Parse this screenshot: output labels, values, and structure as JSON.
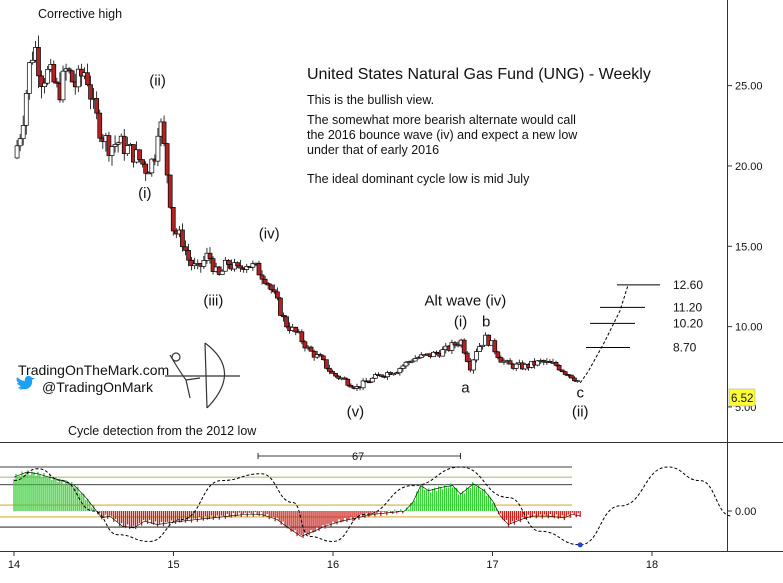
{
  "chart_data": [
    {
      "type": "candlestick",
      "title": "United States Natural Gas Fund (UNG) - Weekly",
      "notes": [
        "This is the bullish view.",
        "The somewhat more bearish alternate would call",
        "the 2016 bounce wave (iv) and expect a new low",
        "under that of early 2016",
        "The ideal dominant cycle low is mid July"
      ],
      "x_ticks": [
        "14",
        "15",
        "16",
        "17",
        "18"
      ],
      "xlim": [
        2014.0,
        2018.55
      ],
      "y_ticks": [
        {
          "value": 5,
          "label": "5.00"
        },
        {
          "value": 10,
          "label": "10.00"
        },
        {
          "value": 15,
          "label": "15.00"
        },
        {
          "value": 20,
          "label": "20.00"
        },
        {
          "value": 25,
          "label": "25.00"
        }
      ],
      "ylim": [
        4.0,
        29.8
      ],
      "last_price": {
        "value": 6.52,
        "label": "6.52"
      },
      "colors": {
        "up": "#ffffff",
        "down": "#b22222",
        "outline": "#000000",
        "price_badge": "#ffff33"
      },
      "price_path": [
        [
          2014.0,
          20.5
        ],
        [
          2014.05,
          22.5
        ],
        [
          2014.1,
          26.5
        ],
        [
          2014.13,
          27.5
        ],
        [
          2014.17,
          25.5
        ],
        [
          2014.22,
          25.8
        ],
        [
          2014.28,
          24.5
        ],
        [
          2014.33,
          26.0
        ],
        [
          2014.38,
          25.0
        ],
        [
          2014.45,
          26.0
        ],
        [
          2014.5,
          23.5
        ],
        [
          2014.55,
          22.0
        ],
        [
          2014.6,
          21.2
        ],
        [
          2014.65,
          21.5
        ],
        [
          2014.72,
          21.0
        ],
        [
          2014.78,
          20.5
        ],
        [
          2014.83,
          19.8
        ],
        [
          2014.88,
          20.5
        ],
        [
          2014.91,
          23.2
        ],
        [
          2014.95,
          20.5
        ],
        [
          2015.0,
          16.0
        ],
        [
          2015.05,
          15.5
        ],
        [
          2015.1,
          14.0
        ],
        [
          2015.15,
          13.5
        ],
        [
          2015.22,
          14.5
        ],
        [
          2015.28,
          13.0
        ],
        [
          2015.34,
          14.0
        ],
        [
          2015.4,
          13.5
        ],
        [
          2015.45,
          14.0
        ],
        [
          2015.52,
          13.6
        ],
        [
          2015.58,
          13.0
        ],
        [
          2015.65,
          11.5
        ],
        [
          2015.7,
          10.2
        ],
        [
          2015.78,
          9.5
        ],
        [
          2015.85,
          8.5
        ],
        [
          2015.92,
          8.0
        ],
        [
          2016.0,
          7.0
        ],
        [
          2016.05,
          6.8
        ],
        [
          2016.1,
          6.5
        ],
        [
          2016.15,
          6.2
        ],
        [
          2016.2,
          6.5
        ],
        [
          2016.3,
          7.0
        ],
        [
          2016.4,
          7.3
        ],
        [
          2016.5,
          8.0
        ],
        [
          2016.6,
          8.2
        ],
        [
          2016.7,
          8.5
        ],
        [
          2016.78,
          9.0
        ],
        [
          2016.8,
          9.2
        ],
        [
          2016.86,
          7.5
        ],
        [
          2016.9,
          8.6
        ],
        [
          2016.96,
          9.3
        ],
        [
          2017.0,
          8.8
        ],
        [
          2017.05,
          8.0
        ],
        [
          2017.1,
          7.6
        ],
        [
          2017.2,
          7.5
        ],
        [
          2017.3,
          7.8
        ],
        [
          2017.4,
          7.6
        ],
        [
          2017.45,
          7.2
        ],
        [
          2017.5,
          6.9
        ],
        [
          2017.55,
          6.5
        ]
      ],
      "projection": [
        [
          2017.55,
          6.5
        ],
        [
          2017.6,
          7.2
        ],
        [
          2017.7,
          9.0
        ],
        [
          2017.8,
          11.0
        ],
        [
          2017.85,
          12.6
        ]
      ],
      "target_levels": [
        {
          "value": 12.6,
          "label": "12.60"
        },
        {
          "value": 11.2,
          "label": "11.20"
        },
        {
          "value": 10.2,
          "label": "10.20"
        },
        {
          "value": 8.7,
          "label": "8.70"
        }
      ],
      "wave_labels": [
        {
          "text": "Corrective high",
          "x": 2014.15,
          "y": 29.2
        },
        {
          "text": "(ii)",
          "x": 2014.9,
          "y": 25.0
        },
        {
          "text": "(i)",
          "x": 2014.82,
          "y": 18.0
        },
        {
          "text": "(iv)",
          "x": 2015.6,
          "y": 15.5
        },
        {
          "text": "(iii)",
          "x": 2015.25,
          "y": 11.3
        },
        {
          "text": "(v)",
          "x": 2016.14,
          "y": 4.4
        },
        {
          "text": "Alt wave (iv)",
          "x": 2016.83,
          "y": 11.3
        },
        {
          "text": "(i)",
          "x": 2016.8,
          "y": 10.0
        },
        {
          "text": "b",
          "x": 2016.96,
          "y": 10.0
        },
        {
          "text": "a",
          "x": 2016.83,
          "y": 5.9
        },
        {
          "text": "c",
          "x": 2017.55,
          "y": 5.6
        },
        {
          "text": "(ii)",
          "x": 2017.55,
          "y": 4.4
        }
      ]
    },
    {
      "type": "histogram",
      "title": "Cycle detection from the 2012 low",
      "y_ticks": [
        {
          "value": 0,
          "label": "0.00"
        }
      ],
      "ylim": [
        -2.3,
        3.1
      ],
      "reference_lines": [
        2.6,
        2.0,
        1.55,
        0.35,
        -0.35,
        -0.95
      ],
      "cycle_span": {
        "label": "67",
        "from": 2015.53,
        "to": 2016.8
      },
      "cycle_low_marker": {
        "x": 2017.55,
        "y": -2.0
      },
      "colors": {
        "positive": "#33cc33",
        "negative": "#cc2222",
        "cycle": "#000000"
      },
      "oscillator_path": [
        [
          2014.0,
          2.0
        ],
        [
          2014.08,
          2.3
        ],
        [
          2014.15,
          2.2
        ],
        [
          2014.22,
          2.0
        ],
        [
          2014.3,
          1.8
        ],
        [
          2014.38,
          1.5
        ],
        [
          2014.45,
          0.8
        ],
        [
          2014.5,
          0.2
        ],
        [
          2014.55,
          -0.4
        ],
        [
          2014.6,
          -0.3
        ],
        [
          2014.68,
          -0.9
        ],
        [
          2014.75,
          -1.0
        ],
        [
          2014.82,
          -0.6
        ],
        [
          2014.9,
          -0.8
        ],
        [
          2014.97,
          -0.7
        ],
        [
          2015.05,
          -0.6
        ],
        [
          2015.15,
          -0.5
        ],
        [
          2015.25,
          -0.4
        ],
        [
          2015.35,
          -0.3
        ],
        [
          2015.45,
          -0.2
        ],
        [
          2015.55,
          -0.2
        ],
        [
          2015.65,
          -0.5
        ],
        [
          2015.72,
          -1.0
        ],
        [
          2015.8,
          -1.5
        ],
        [
          2015.88,
          -1.2
        ],
        [
          2015.95,
          -0.9
        ],
        [
          2016.05,
          -0.6
        ],
        [
          2016.15,
          -0.4
        ],
        [
          2016.25,
          -0.2
        ],
        [
          2016.35,
          -0.1
        ],
        [
          2016.45,
          0.0
        ],
        [
          2016.5,
          0.5
        ],
        [
          2016.55,
          1.5
        ],
        [
          2016.6,
          1.2
        ],
        [
          2016.68,
          1.4
        ],
        [
          2016.75,
          1.5
        ],
        [
          2016.8,
          1.0
        ],
        [
          2016.88,
          1.6
        ],
        [
          2016.95,
          1.2
        ],
        [
          2017.0,
          0.6
        ],
        [
          2017.05,
          -0.3
        ],
        [
          2017.1,
          -0.8
        ],
        [
          2017.18,
          -0.5
        ],
        [
          2017.25,
          -0.3
        ],
        [
          2017.35,
          -0.3
        ],
        [
          2017.45,
          -0.4
        ],
        [
          2017.5,
          -0.2
        ],
        [
          2017.55,
          -0.3
        ]
      ],
      "cycle_path": [
        [
          2014.0,
          1.8
        ],
        [
          2014.15,
          2.5
        ],
        [
          2014.3,
          1.8
        ],
        [
          2014.5,
          0.0
        ],
        [
          2014.65,
          -1.4
        ],
        [
          2014.85,
          -1.8
        ],
        [
          2015.05,
          -0.5
        ],
        [
          2015.3,
          1.8
        ],
        [
          2015.55,
          2.2
        ],
        [
          2015.75,
          0.5
        ],
        [
          2015.85,
          -1.5
        ],
        [
          2016.0,
          -1.8
        ],
        [
          2016.2,
          -0.2
        ],
        [
          2016.5,
          1.5
        ],
        [
          2016.8,
          2.6
        ],
        [
          2017.1,
          0.8
        ],
        [
          2017.3,
          -1.2
        ],
        [
          2017.55,
          -2.0
        ],
        [
          2017.8,
          0.3
        ],
        [
          2018.1,
          2.6
        ],
        [
          2018.3,
          1.8
        ],
        [
          2018.5,
          -0.3
        ]
      ]
    }
  ],
  "watermark": {
    "site": "TradingOnTheMark.com",
    "handle": "@TradingOnMark"
  }
}
